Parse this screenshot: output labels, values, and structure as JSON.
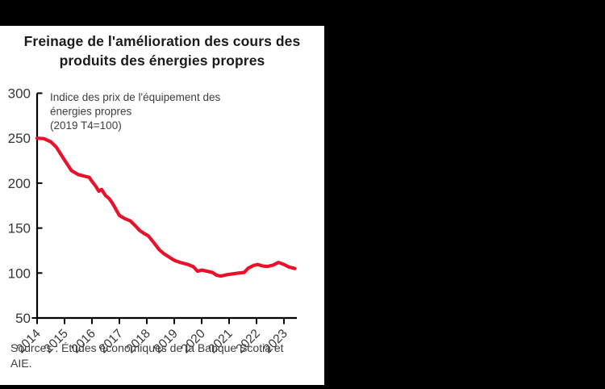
{
  "window": {
    "background_color": "#000000",
    "panel_color": "#ffffff"
  },
  "chart_data": {
    "type": "line",
    "title_lines": [
      "Freinage de l'amélioration des cours des",
      "produits des énergies propres"
    ],
    "annotation_lines": [
      "Indice des prix de l'équipement des",
      "énergies propres",
      "(2019 T4=100)"
    ],
    "source_lines": [
      "Sources : Études économiques de la Banque Scotia  et",
      "AIE."
    ],
    "x_ticks": [
      2014,
      2015,
      2016,
      2017,
      2018,
      2019,
      2020,
      2021,
      2022,
      2023
    ],
    "y_ticks": [
      50,
      100,
      150,
      200,
      250,
      300
    ],
    "ylim": [
      50,
      300
    ],
    "xlim": [
      2014,
      2023.5
    ],
    "grid": "off",
    "legend_position": "none",
    "axis_color": "#000000",
    "tick_label_color": "#363636",
    "series": [
      {
        "name": "Indice des prix de l'équipement des énergies propres (2019 T4=100)",
        "color": "#e8132b",
        "points": [
          [
            2014.0,
            250
          ],
          [
            2014.25,
            249.5
          ],
          [
            2014.5,
            246
          ],
          [
            2014.7,
            240
          ],
          [
            2014.95,
            228
          ],
          [
            2015.1,
            221
          ],
          [
            2015.25,
            214
          ],
          [
            2015.5,
            209.5
          ],
          [
            2015.75,
            207.5
          ],
          [
            2015.9,
            206.5
          ],
          [
            2016.0,
            202
          ],
          [
            2016.15,
            196
          ],
          [
            2016.25,
            191
          ],
          [
            2016.35,
            193
          ],
          [
            2016.5,
            186
          ],
          [
            2016.62,
            183
          ],
          [
            2016.75,
            177.5
          ],
          [
            2017.0,
            164
          ],
          [
            2017.2,
            160.5
          ],
          [
            2017.4,
            158
          ],
          [
            2017.6,
            152
          ],
          [
            2017.75,
            147
          ],
          [
            2017.9,
            144
          ],
          [
            2018.05,
            141.5
          ],
          [
            2018.25,
            134
          ],
          [
            2018.45,
            126
          ],
          [
            2018.6,
            122
          ],
          [
            2018.75,
            119
          ],
          [
            2018.9,
            116
          ],
          [
            2019.05,
            113.5
          ],
          [
            2019.25,
            111.5
          ],
          [
            2019.5,
            109.5
          ],
          [
            2019.7,
            107
          ],
          [
            2019.85,
            102
          ],
          [
            2020.0,
            103.3
          ],
          [
            2020.2,
            102
          ],
          [
            2020.4,
            100.5
          ],
          [
            2020.55,
            97.5
          ],
          [
            2020.7,
            96.6
          ],
          [
            2020.9,
            98
          ],
          [
            2021.1,
            99
          ],
          [
            2021.35,
            100
          ],
          [
            2021.55,
            100.6
          ],
          [
            2021.7,
            105.5
          ],
          [
            2021.9,
            108.5
          ],
          [
            2022.05,
            109.5
          ],
          [
            2022.2,
            108
          ],
          [
            2022.4,
            107.3
          ],
          [
            2022.6,
            108.8
          ],
          [
            2022.8,
            111.8
          ],
          [
            2023.0,
            109.5
          ],
          [
            2023.2,
            106.5
          ],
          [
            2023.4,
            105
          ]
        ]
      }
    ]
  }
}
